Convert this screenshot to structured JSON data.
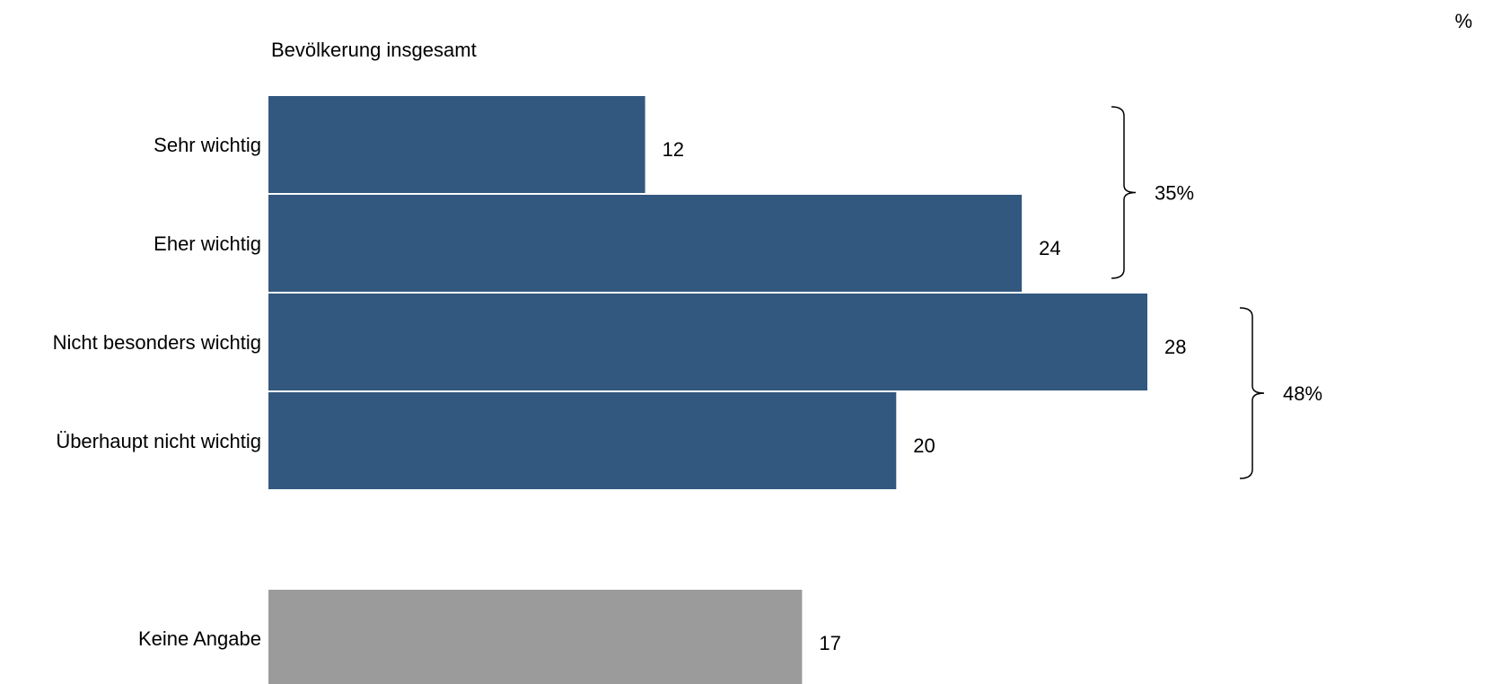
{
  "chart_data": {
    "type": "bar",
    "orientation": "horizontal",
    "subtitle": "Bevölkerung insgesamt",
    "unit": "%",
    "categories": [
      "Sehr wichtig",
      "Eher wichtig",
      "Nicht besonders wichtig",
      "Überhaupt nicht wichtig",
      "Keine Angabe"
    ],
    "values": [
      12,
      24,
      28,
      20,
      17
    ],
    "value_labels": [
      "12",
      "24",
      "28",
      "20",
      "17"
    ],
    "bar_colors": [
      "#33587f",
      "#33587f",
      "#33587f",
      "#33587f",
      "#9b9b9b"
    ],
    "groups": [
      {
        "label": "35%",
        "members": [
          0,
          1
        ]
      },
      {
        "label": "48%",
        "members": [
          2,
          3
        ]
      }
    ],
    "xlim": [
      0,
      28
    ],
    "grid": false,
    "legend": "none"
  }
}
